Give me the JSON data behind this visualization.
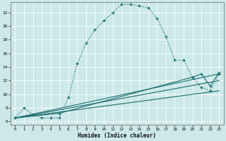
{
  "xlabel": "Humidex (Indice chaleur)",
  "bg_color": "#cce8e8",
  "grid_color": "#b0d0d0",
  "line_color": "#1a6b6b",
  "xlim": [
    -0.5,
    23.5
  ],
  "ylim": [
    5.5,
    23.5
  ],
  "xticks": [
    0,
    1,
    2,
    3,
    4,
    5,
    6,
    7,
    8,
    9,
    10,
    11,
    12,
    13,
    14,
    15,
    16,
    17,
    18,
    19,
    20,
    21,
    22,
    23
  ],
  "yticks": [
    6,
    8,
    10,
    12,
    14,
    16,
    18,
    20,
    22
  ],
  "curve1_x": [
    0,
    1,
    2,
    3,
    4,
    5,
    6,
    7,
    8,
    9,
    10,
    11,
    12,
    13,
    14,
    15,
    16,
    17,
    18,
    19,
    20,
    21,
    22,
    23
  ],
  "curve1_y": [
    6.5,
    8.0,
    7.0,
    6.5,
    6.5,
    6.5,
    9.5,
    14.5,
    17.5,
    19.5,
    20.8,
    22.0,
    23.2,
    23.2,
    23.0,
    22.7,
    21.2,
    18.5,
    15.0,
    15.0,
    12.5,
    11.0,
    10.5,
    13.0
  ],
  "curve2_x": [
    0,
    5,
    20,
    21,
    22,
    23
  ],
  "curve2_y": [
    6.5,
    7.2,
    12.5,
    13.0,
    11.2,
    13.2
  ],
  "curve3_x": [
    0,
    23
  ],
  "curve3_y": [
    6.5,
    13.0
  ],
  "curve4_x": [
    0,
    23
  ],
  "curve4_y": [
    6.5,
    12.0
  ],
  "curve5_x": [
    0,
    23
  ],
  "curve5_y": [
    6.5,
    10.5
  ]
}
